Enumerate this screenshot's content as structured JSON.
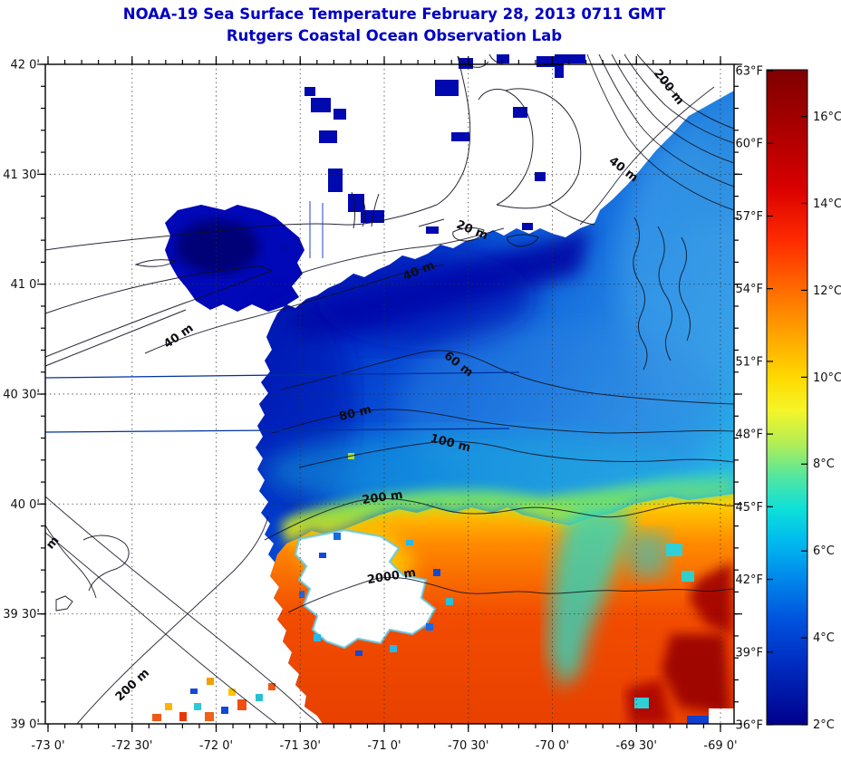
{
  "title": {
    "line1": "NOAA-19 Sea Surface Temperature February 28, 2013 0711 GMT",
    "line2": "Rutgers Coastal Ocean Observation Lab"
  },
  "axes": {
    "lat_labels": [
      "42 0'",
      "41 30'",
      "41 0'",
      "40 30'",
      "40 0'",
      "39 30'",
      "39 0'"
    ],
    "lon_labels": [
      "-73 0'",
      "-72 30'",
      "-72 0'",
      "-71 30'",
      "-71 0'",
      "-70 30'",
      "-70 0'",
      "-69 30'",
      "-69 0'"
    ]
  },
  "colorbar": {
    "fahrenheit_labels": [
      "63°F",
      "60°F",
      "57°F",
      "54°F",
      "51°F",
      "48°F",
      "45°F",
      "42°F",
      "39°F",
      "36°F"
    ],
    "celsius_labels": [
      "16°C",
      "14°C",
      "12°C",
      "10°C",
      "8°C",
      "6°C",
      "4°C",
      "2°C"
    ],
    "min": "36°F / 2°C",
    "max": "63°F / 16°C"
  },
  "contour_labels": [
    "200 m",
    "40 m",
    "20 m",
    "40 m",
    "40 m",
    "60 m",
    "80 m",
    "100 m",
    "200 m",
    "2000 m",
    "200 m",
    "m"
  ],
  "colors": {
    "title_text": "#0000C4",
    "cold_water": "#000099",
    "mid_water": "#1f7fe0",
    "cyan_water": "#20c8e4",
    "warm_water": "#f04a00",
    "hot_water": "#8b0000",
    "land": "#ffffff",
    "contour_line": "#101020",
    "transect_line": "#0030a0"
  }
}
